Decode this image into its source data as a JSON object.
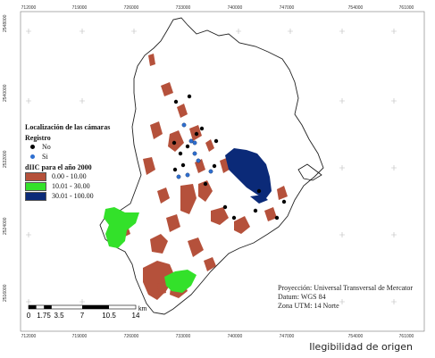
{
  "map": {
    "x_ticks": [
      "712000",
      "719000",
      "726000",
      "733000",
      "740000",
      "747000",
      "754000",
      "761000"
    ],
    "y_ticks": [
      "2548000",
      "2540000",
      "2532000",
      "2524000",
      "2516000"
    ],
    "colors": {
      "low": "#b5513b",
      "mid": "#33e12a",
      "high": "#0b2a78",
      "dot_no": "#000000",
      "dot_si": "#2f6fd0"
    }
  },
  "legend": {
    "title_line1": "Localización de las cámaras",
    "subtitle_registro": "Registro",
    "no": "No",
    "si": "Si",
    "subtitle_dIIC": "dIIC para el año 2000",
    "class1": "0.00 - 10.00",
    "class2": "10.01 - 30.00",
    "class3": "30.01 - 100.00"
  },
  "projection": {
    "line1": "Proyección: Universal Transversal de Mercator",
    "line2": "Datum: WGS 84",
    "line3": "Zona UTM: 14 Norte"
  },
  "scale_bar": {
    "labels": [
      "0",
      "1.75",
      "3.5",
      "7",
      "10.5",
      "14"
    ],
    "unit": "km"
  },
  "footer_note": "Ilegibilidad de origen"
}
